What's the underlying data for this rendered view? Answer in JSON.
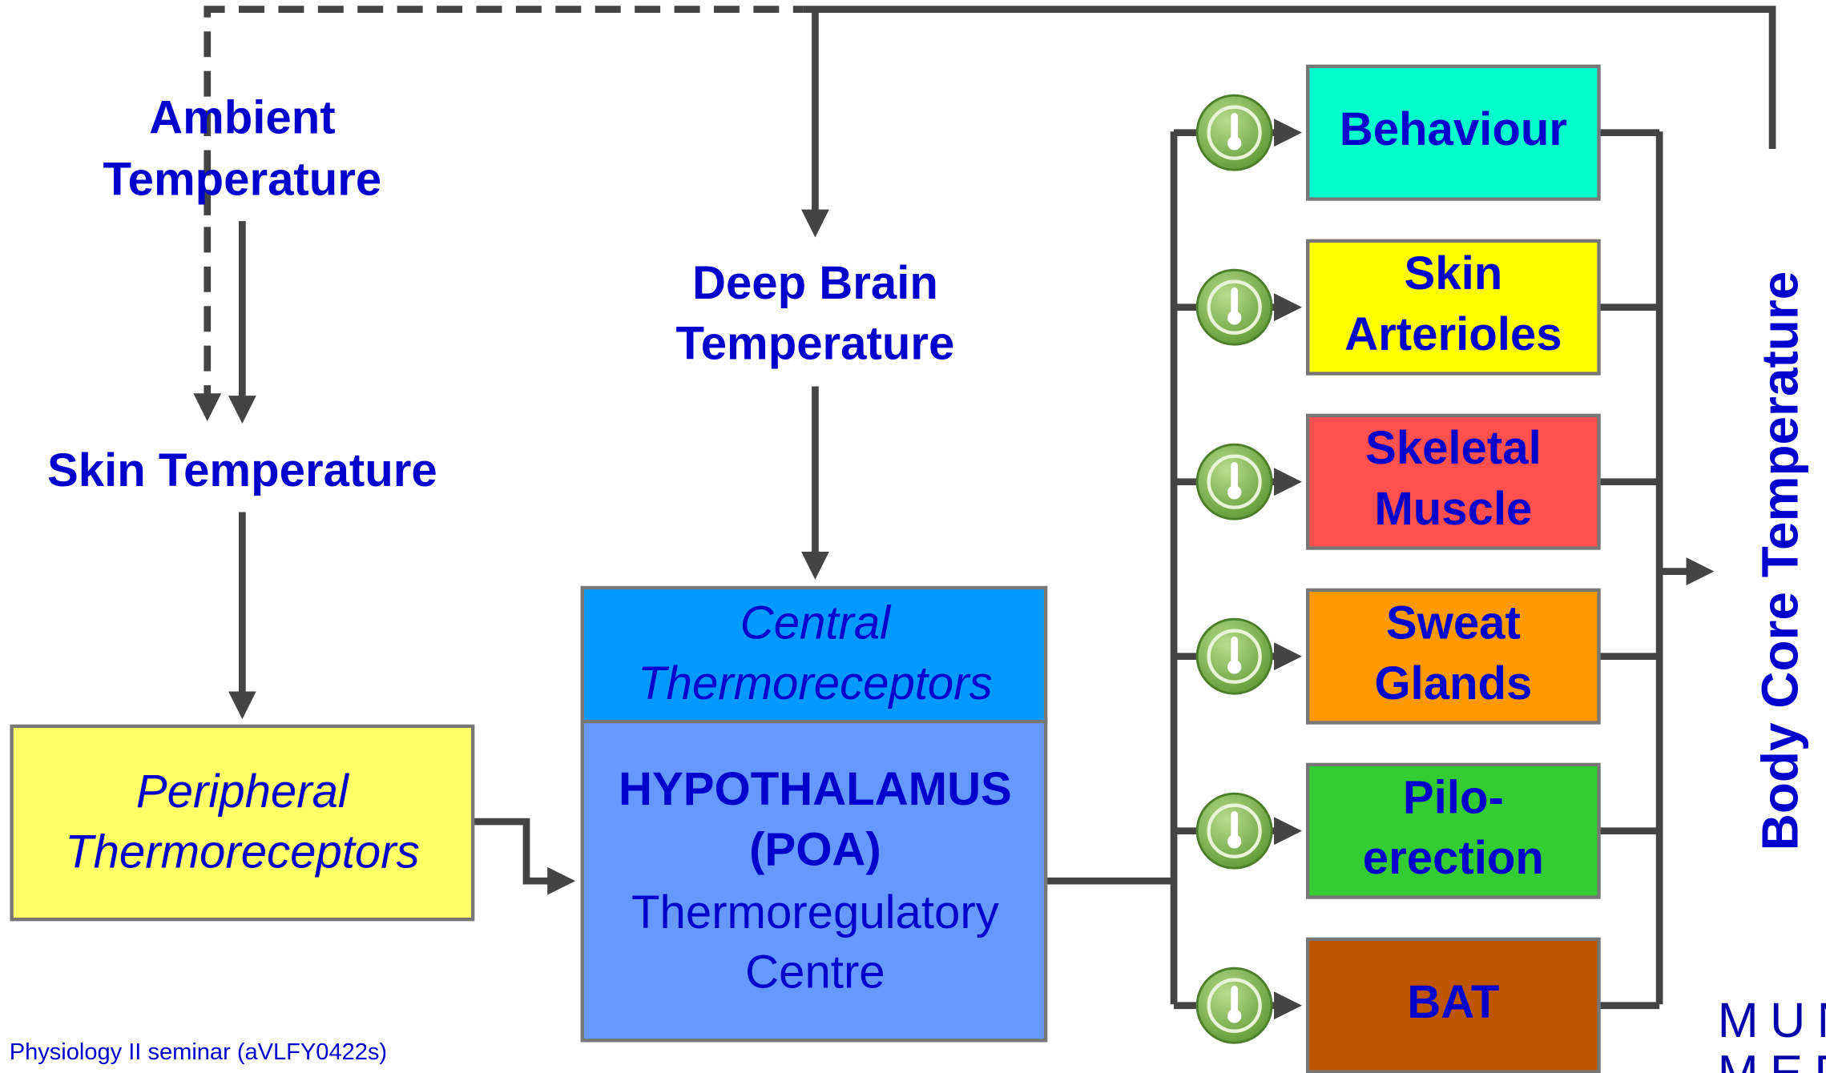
{
  "labels": {
    "ambient": [
      "Ambient",
      "Temperature"
    ],
    "skin": "Skin Temperature",
    "deep_brain": [
      "Deep Brain",
      "Temperature"
    ],
    "body_core": "Body Core Temperature"
  },
  "peripheral": [
    "Peripheral",
    "Thermoreceptors"
  ],
  "central": [
    "Central",
    "Thermoreceptors"
  ],
  "hypothalamus": {
    "bold": [
      "HYPOTHALAMUS",
      "(POA)"
    ],
    "normal": [
      "Thermoregulatory",
      "Centre"
    ]
  },
  "effectors": [
    {
      "lines": [
        "Behaviour"
      ],
      "color": "#00ffcc"
    },
    {
      "lines": [
        "Skin",
        "Arterioles"
      ],
      "color": "#ffff00"
    },
    {
      "lines": [
        "Skeletal",
        "Muscle"
      ],
      "color": "#ff5050"
    },
    {
      "lines": [
        "Sweat",
        "Glands"
      ],
      "color": "#ff9900"
    },
    {
      "lines": [
        "Pilo-",
        "erection"
      ],
      "color": "#33cc33"
    },
    {
      "lines": [
        "BAT"
      ],
      "color": "#c05500"
    }
  ],
  "footer": "Physiology II seminar (aVLFY0422s)",
  "logo": [
    "MUN",
    "MED"
  ]
}
